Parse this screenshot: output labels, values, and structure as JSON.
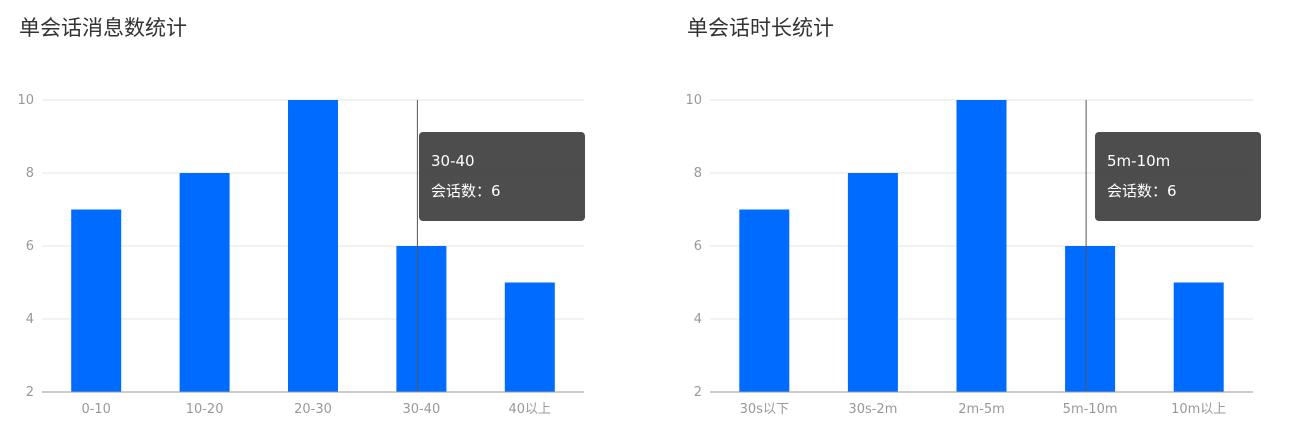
{
  "chart_data": [
    {
      "type": "bar",
      "title": "单会话消息数统计",
      "categories": [
        "0-10",
        "10-20",
        "20-30",
        "30-40",
        "40以上"
      ],
      "values": [
        7,
        8,
        10,
        6,
        5
      ],
      "ylim": [
        2,
        10
      ],
      "yticks": [
        2,
        4,
        6,
        8,
        10
      ],
      "grid": true,
      "bar_color": "#006cff",
      "tooltip": {
        "category": "30-40",
        "label": "会话数：",
        "value": 6
      }
    },
    {
      "type": "bar",
      "title": "单会话时长统计",
      "categories": [
        "30s以下",
        "30s-2m",
        "2m-5m",
        "5m-10m",
        "10m以上"
      ],
      "values": [
        7,
        8,
        10,
        6,
        5
      ],
      "ylim": [
        2,
        10
      ],
      "yticks": [
        2,
        4,
        6,
        8,
        10
      ],
      "grid": true,
      "bar_color": "#006cff",
      "tooltip": {
        "category": "5m-10m",
        "label": "会话数：",
        "value": 6
      }
    }
  ]
}
